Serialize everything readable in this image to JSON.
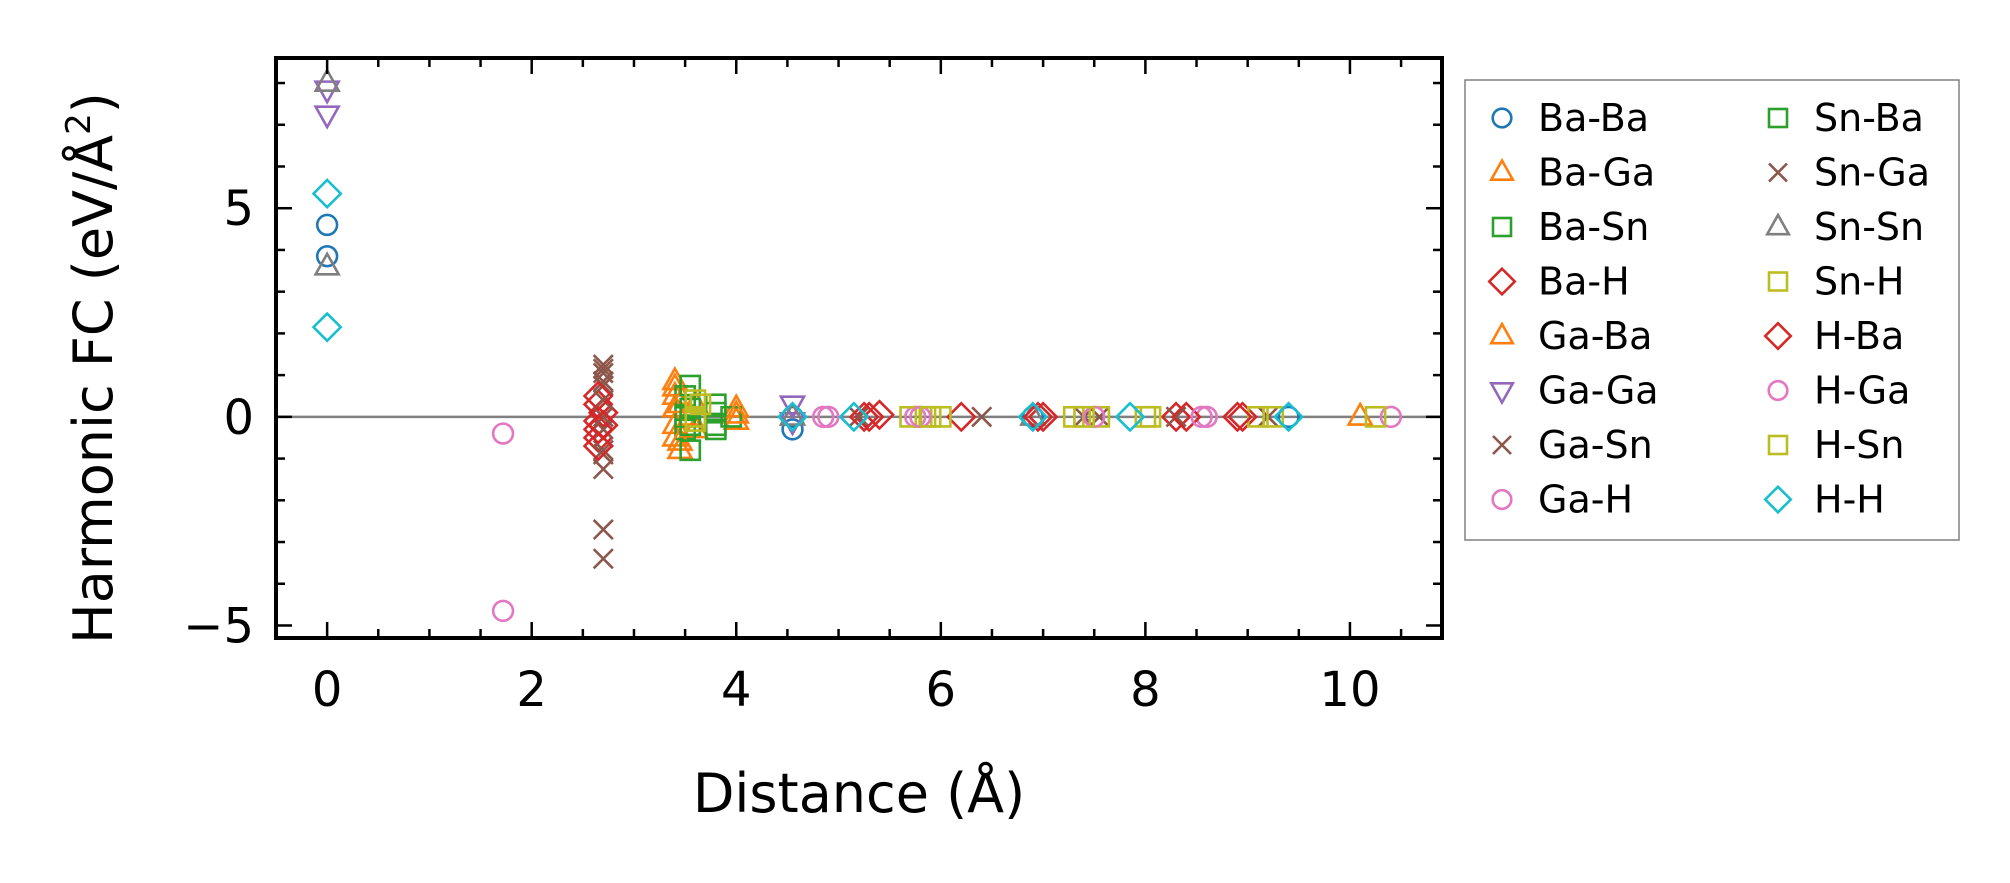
{
  "chart_data": {
    "type": "scatter",
    "xlabel": "Distance (Å)",
    "ylabel_main": "Harmonic FC (eV/Å",
    "ylabel_sup": "2",
    "ylabel_close": ")",
    "xlim": [
      -0.5,
      10.9
    ],
    "ylim": [
      -5.3,
      8.6
    ],
    "xticks": [
      0,
      2,
      4,
      6,
      8,
      10
    ],
    "yticks": [
      -5,
      0,
      5
    ],
    "xtick_labels": [
      "0",
      "2",
      "4",
      "6",
      "8",
      "10"
    ],
    "ytick_labels": [
      "−5",
      "0",
      "5"
    ],
    "grid": false,
    "zero_line": true,
    "legend_position": "outside-right",
    "series": [
      {
        "name": "Ba-Ba",
        "marker": "circle",
        "color": "#1f77b4",
        "points": [
          [
            0,
            4.6
          ],
          [
            0,
            3.85
          ],
          [
            4.55,
            -0.3
          ],
          [
            4.55,
            0.0
          ],
          [
            6.9,
            0.0
          ],
          [
            9.4,
            0.0
          ]
        ]
      },
      {
        "name": "Ba-Ga",
        "marker": "triangle-up",
        "color": "#ff7f0e",
        "points": [
          [
            3.4,
            0.85
          ],
          [
            3.4,
            0.5
          ],
          [
            3.4,
            0.2
          ],
          [
            3.4,
            -0.2
          ],
          [
            3.4,
            -0.5
          ],
          [
            3.45,
            -0.8
          ],
          [
            3.6,
            0.3
          ],
          [
            3.6,
            -0.3
          ],
          [
            4.0,
            0.2
          ],
          [
            4.0,
            -0.1
          ],
          [
            10.1,
            0.0
          ]
        ]
      },
      {
        "name": "Ba-Sn",
        "marker": "square",
        "color": "#2ca02c",
        "points": [
          [
            3.5,
            0.5
          ],
          [
            3.5,
            0.0
          ],
          [
            3.5,
            -0.3
          ],
          [
            3.8,
            0.1
          ],
          [
            3.8,
            -0.2
          ],
          [
            3.95,
            0.0
          ]
        ]
      },
      {
        "name": "Ba-H",
        "marker": "diamond",
        "color": "#d62728",
        "points": [
          [
            2.65,
            0.3
          ],
          [
            2.65,
            -0.1
          ],
          [
            2.65,
            -0.5
          ],
          [
            2.7,
            0.1
          ],
          [
            5.3,
            0.0
          ],
          [
            6.2,
            0.0
          ],
          [
            7.0,
            0.0
          ],
          [
            8.3,
            0.0
          ],
          [
            8.95,
            0.0
          ]
        ]
      },
      {
        "name": "Ga-Ba",
        "marker": "triangle-up",
        "color": "#ff7f0e",
        "points": [
          [
            3.4,
            0.7
          ],
          [
            3.45,
            0.3
          ],
          [
            3.45,
            -0.6
          ],
          [
            3.55,
            0.0
          ],
          [
            4.0,
            0.05
          ]
        ]
      },
      {
        "name": "Ga-Ga",
        "marker": "triangle-down",
        "color": "#9467bd",
        "points": [
          [
            0,
            7.85
          ],
          [
            0,
            7.25
          ],
          [
            4.55,
            0.3
          ],
          [
            4.55,
            -0.1
          ]
        ]
      },
      {
        "name": "Ga-Sn",
        "marker": "x",
        "color": "#8c564b",
        "points": [
          [
            2.7,
            1.25
          ],
          [
            2.7,
            1.05
          ],
          [
            2.7,
            0.75
          ],
          [
            2.7,
            0.4
          ],
          [
            2.7,
            0.0
          ],
          [
            2.7,
            -0.5
          ],
          [
            2.7,
            -0.8
          ],
          [
            2.7,
            -1.25
          ],
          [
            2.7,
            -2.7
          ],
          [
            2.7,
            -3.4
          ],
          [
            5.2,
            0.0
          ],
          [
            6.4,
            0.0
          ],
          [
            7.55,
            0.0
          ],
          [
            8.3,
            0.0
          ],
          [
            9.2,
            0.0
          ]
        ]
      },
      {
        "name": "Ga-H",
        "marker": "circle",
        "color": "#e377c2",
        "points": [
          [
            1.72,
            -0.4
          ],
          [
            1.72,
            -4.65
          ],
          [
            4.85,
            0.0
          ],
          [
            5.75,
            0.0
          ],
          [
            8.6,
            0.0
          ],
          [
            10.4,
            0.0
          ]
        ]
      },
      {
        "name": "Sn-Ba",
        "marker": "square",
        "color": "#2ca02c",
        "points": [
          [
            3.55,
            0.75
          ],
          [
            3.55,
            0.2
          ],
          [
            3.55,
            -0.2
          ],
          [
            3.55,
            -0.8
          ],
          [
            3.8,
            -0.3
          ],
          [
            3.8,
            0.3
          ]
        ]
      },
      {
        "name": "Sn-Ga",
        "marker": "x",
        "color": "#8c564b",
        "points": [
          [
            2.7,
            1.15
          ],
          [
            2.7,
            0.85
          ],
          [
            2.7,
            -0.3
          ],
          [
            2.7,
            -0.9
          ],
          [
            7.4,
            0.0
          ]
        ]
      },
      {
        "name": "Sn-Sn",
        "marker": "triangle-up",
        "color": "#7f7f7f",
        "points": [
          [
            0,
            8.0
          ],
          [
            0,
            3.6
          ],
          [
            4.55,
            0.0
          ],
          [
            6.9,
            0.0
          ]
        ]
      },
      {
        "name": "Sn-H",
        "marker": "square",
        "color": "#bcbd22",
        "points": [
          [
            3.6,
            0.4
          ],
          [
            3.6,
            -0.1
          ],
          [
            5.7,
            0.0
          ],
          [
            5.85,
            0.0
          ],
          [
            6.0,
            0.0
          ],
          [
            7.3,
            0.0
          ],
          [
            7.55,
            0.0
          ],
          [
            8.05,
            0.0
          ],
          [
            9.1,
            0.0
          ],
          [
            10.25,
            0.0
          ]
        ]
      },
      {
        "name": "H-Ba",
        "marker": "diamond",
        "color": "#d62728",
        "points": [
          [
            2.65,
            0.5
          ],
          [
            2.65,
            -0.3
          ],
          [
            2.65,
            -0.7
          ],
          [
            2.7,
            -0.2
          ],
          [
            5.4,
            0.05
          ],
          [
            5.25,
            0.0
          ],
          [
            6.95,
            0.0
          ],
          [
            8.4,
            0.0
          ],
          [
            8.9,
            0.0
          ]
        ]
      },
      {
        "name": "H-Ga",
        "marker": "circle",
        "color": "#e377c2",
        "points": [
          [
            4.9,
            0.0
          ],
          [
            5.8,
            0.0
          ],
          [
            7.5,
            0.0
          ],
          [
            8.55,
            0.0
          ]
        ]
      },
      {
        "name": "H-Sn",
        "marker": "square",
        "color": "#bcbd22",
        "points": [
          [
            3.6,
            0.0
          ],
          [
            3.65,
            0.3
          ],
          [
            5.9,
            0.0
          ],
          [
            7.4,
            0.0
          ],
          [
            8.0,
            0.0
          ],
          [
            9.25,
            0.0
          ]
        ]
      },
      {
        "name": "H-H",
        "marker": "diamond",
        "color": "#17becf",
        "points": [
          [
            0,
            5.35
          ],
          [
            0,
            2.15
          ],
          [
            4.55,
            0.0
          ],
          [
            5.15,
            0.0
          ],
          [
            6.9,
            0.0
          ],
          [
            7.85,
            0.0
          ],
          [
            9.4,
            0.0
          ]
        ]
      }
    ]
  }
}
